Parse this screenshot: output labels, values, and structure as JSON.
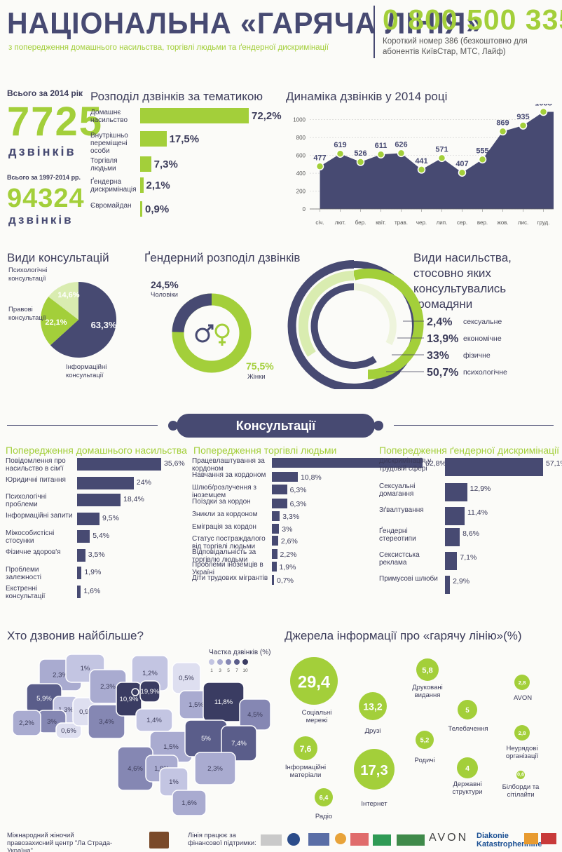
{
  "header": {
    "title": "НАЦІОНАЛЬНА «ГАРЯЧА ЛІНІЯ»",
    "subtitle": "з попередження домашнього насильства, торгівлі людьми та ґендерної дискримінації",
    "phone": "0 800 500 335",
    "phone_note": "Короткий номер 386 (безкоштовно для абонентів КиївСтар, МТС, Лайф)"
  },
  "totals": {
    "label_2014": "Всього за 2014 рік",
    "value_2014": "7725",
    "unit_2014": "дзвінків",
    "label_all": "Всього за 1997-2014 рр.",
    "value_all": "94324",
    "unit_all": "дзвінків"
  },
  "topics": {
    "title": "Розподіл дзвінків за тематикою",
    "items": [
      {
        "label": "Домашнє насильство",
        "value": 72.2,
        "text": "72,2%"
      },
      {
        "label": "Внутрішньо переміщені особи",
        "value": 17.5,
        "text": "17,5%"
      },
      {
        "label": "Торгівля людьми",
        "value": 7.3,
        "text": "7,3%"
      },
      {
        "label": "Ґендерна дискримінація",
        "value": 2.1,
        "text": "2,1%"
      },
      {
        "label": "Євромайдан",
        "value": 0.9,
        "text": "0,9%"
      }
    ]
  },
  "chart_data": [
    {
      "type": "area",
      "title": "Динаміка дзвінків у 2014 році",
      "categories": [
        "січ.",
        "лют.",
        "бер.",
        "квіт.",
        "трав.",
        "чер.",
        "лип.",
        "сер.",
        "вер.",
        "жов.",
        "лис.",
        "груд."
      ],
      "values": [
        477,
        619,
        526,
        611,
        626,
        441,
        571,
        407,
        555,
        869,
        935,
        1088
      ],
      "y_ticks": [
        "0",
        "200",
        "400",
        "600",
        "800",
        "1000"
      ],
      "ylim": [
        0,
        1100
      ],
      "grid": true
    },
    {
      "type": "pie",
      "title": "Види консультацій",
      "slices": [
        {
          "label": "Інформаційні консультації",
          "value": 63.3,
          "text": "63,3%",
          "color": "#474a72"
        },
        {
          "label": "Правові консультації",
          "value": 22.1,
          "text": "22,1%",
          "color": "#a3cf3a"
        },
        {
          "label": "Психологічні консультації",
          "value": 14.6,
          "text": "14,6%",
          "color": "#d9ecb0"
        }
      ]
    },
    {
      "type": "pie",
      "title": "Ґендерний розподіл дзвінків",
      "slices": [
        {
          "label": "Чоловіки",
          "value": 24.5,
          "text": "24,5%",
          "color": "#474a72"
        },
        {
          "label": "Жінки",
          "value": 75.5,
          "text": "75,5%",
          "color": "#a3cf3a"
        }
      ]
    },
    {
      "type": "pie",
      "title": "Види насильства, стосовно яких консультувались громадяни",
      "slices": [
        {
          "label": "сексуальне",
          "value": 2.4,
          "text": "2,4%"
        },
        {
          "label": "економічне",
          "value": 13.9,
          "text": "13,9%"
        },
        {
          "label": "фізичне",
          "value": 33,
          "text": "33%"
        },
        {
          "label": "психологічне",
          "value": 50.7,
          "text": "50,7%"
        }
      ]
    }
  ],
  "consult_banner": "Консультації",
  "dv": {
    "title": "Попередження домашнього насильства",
    "items": [
      {
        "label": "Повідомлення про насильство в сім'ї",
        "value": 35.6,
        "text": "35,6%"
      },
      {
        "label": "Юридичні питання",
        "value": 24,
        "text": "24%"
      },
      {
        "label": "Психологічні проблеми",
        "value": 18.4,
        "text": "18,4%"
      },
      {
        "label": "Інформаційні запити",
        "value": 9.5,
        "text": "9,5%"
      },
      {
        "label": "Міжособистісні стосунки",
        "value": 5.4,
        "text": "5,4%"
      },
      {
        "label": "Фізичне здоров'я",
        "value": 3.5,
        "text": "3,5%"
      },
      {
        "label": "Проблеми залежності",
        "value": 1.9,
        "text": "1,9%"
      },
      {
        "label": "Екстренні консультації",
        "value": 1.6,
        "text": "1,6%"
      }
    ]
  },
  "th": {
    "title": "Попередження торгівлі людьми",
    "items": [
      {
        "label": "Працевлаштування за кордоном",
        "value": 62.8,
        "text": "62,8%"
      },
      {
        "label": "Навчання за кордоном",
        "value": 10.8,
        "text": "10,8%"
      },
      {
        "label": "Шлюб/розлучення з іноземцем",
        "value": 6.3,
        "text": "6,3%"
      },
      {
        "label": "Поїздки за кордон",
        "value": 6.3,
        "text": "6,3%"
      },
      {
        "label": "Зникли за кордоном",
        "value": 3.3,
        "text": "3,3%"
      },
      {
        "label": "Еміграція за кордон",
        "value": 3,
        "text": "3%"
      },
      {
        "label": "Статус постраждалого від торгівлі людьми",
        "value": 2.6,
        "text": "2,6%"
      },
      {
        "label": "Відповідальність за торгівлю людьми",
        "value": 2.2,
        "text": "2,2%"
      },
      {
        "label": "Проблеми іноземців в Україні",
        "value": 1.9,
        "text": "1,9%"
      },
      {
        "label": "Діти трудових мігрантів",
        "value": 0.7,
        "text": "0,7%"
      }
    ]
  },
  "gd": {
    "title": "Попередження ґендерної дискримінації",
    "items": [
      {
        "label": "Дискримінація у трудовій сфері",
        "value": 57.1,
        "text": "57,1%"
      },
      {
        "label": "Сексуальні домагання",
        "value": 12.9,
        "text": "12,9%"
      },
      {
        "label": "Зґвалтування",
        "value": 11.4,
        "text": "11,4%"
      },
      {
        "label": "Ґендерні стереотипи",
        "value": 8.6,
        "text": "8,6%"
      },
      {
        "label": "Сексистська реклама",
        "value": 7.1,
        "text": "7,1%"
      },
      {
        "label": "Примусові шлюби",
        "value": 2.9,
        "text": "2,9%"
      }
    ]
  },
  "map": {
    "title": "Хто дзвонив найбільше?",
    "legend_title": "Частка дзвінків (%)",
    "legend_ticks": [
      "1",
      "3",
      "5",
      "7",
      "10"
    ],
    "regions": [
      {
        "text": "2,3%",
        "value": 2.3
      },
      {
        "text": "1%",
        "value": 1
      },
      {
        "text": "5,9%",
        "value": 5.9
      },
      {
        "text": "1,3%",
        "value": 1.3
      },
      {
        "text": "3%",
        "value": 3
      },
      {
        "text": "2,2%",
        "value": 2.2
      },
      {
        "text": "0,6%",
        "value": 0.6
      },
      {
        "text": "0,9%",
        "value": 0.9
      },
      {
        "text": "2,3%",
        "value": 2.3
      },
      {
        "text": "3,4%",
        "value": 3.4
      },
      {
        "text": "1,2%",
        "value": 1.2
      },
      {
        "text": "10,9%",
        "value": 10.9
      },
      {
        "text": "19,9%",
        "value": 19.9
      },
      {
        "text": "0,5%",
        "value": 0.5
      },
      {
        "text": "1,4%",
        "value": 1.4
      },
      {
        "text": "1,5%",
        "value": 1.5
      },
      {
        "text": "11,8%",
        "value": 11.8
      },
      {
        "text": "4,5%",
        "value": 4.5
      },
      {
        "text": "1,5%",
        "value": 1.5
      },
      {
        "text": "5%",
        "value": 5
      },
      {
        "text": "7,4%",
        "value": 7.4
      },
      {
        "text": "4,6%",
        "value": 4.6
      },
      {
        "text": "1,9%",
        "value": 1.9
      },
      {
        "text": "1%",
        "value": 1
      },
      {
        "text": "2,3%",
        "value": 2.3
      },
      {
        "text": "1,6%",
        "value": 1.6
      }
    ]
  },
  "sources": {
    "title": "Джерела інформації про «гарячу лінію»(%)",
    "items": [
      {
        "value": "29,4",
        "label": "Соціальні мережі"
      },
      {
        "value": "13,2",
        "label": "Друзі"
      },
      {
        "value": "5,8",
        "label": "Друковані видання"
      },
      {
        "value": "2,8",
        "label": "AVON"
      },
      {
        "value": "5",
        "label": "Телебачення"
      },
      {
        "value": "5,2",
        "label": "Родичі"
      },
      {
        "value": "2,8",
        "label": "Неурядові організації"
      },
      {
        "value": "7,6",
        "label": "Інформаційні матеріали"
      },
      {
        "value": "17,3",
        "label": "Інтернет"
      },
      {
        "value": "4",
        "label": "Державні структури"
      },
      {
        "value": "0,6",
        "label": "Білборди та сітілайти"
      },
      {
        "value": "6,4",
        "label": "Радіо"
      }
    ]
  },
  "footer": {
    "org": "Міжнародний жіночий правозахисний центр \"Ла Страда-Україна\"",
    "support": "Лінія працює за фінансової підтримки:",
    "logo_avon": "AVON",
    "logo_diakonie": "Diakonie",
    "logo_diakonie_sub": "Katastrophenhilfe"
  }
}
